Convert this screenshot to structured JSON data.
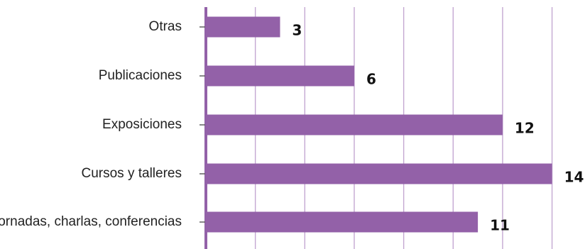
{
  "chart_data": {
    "type": "bar",
    "orientation": "horizontal",
    "categories": [
      "Otras",
      "Publicaciones",
      "Exposiciones",
      "Cursos y talleres",
      "Jornadas, charlas, conferencias"
    ],
    "values": [
      3,
      6,
      12,
      14,
      11
    ],
    "value_labels": [
      "3",
      "6",
      "12",
      "14",
      "11"
    ],
    "title": "",
    "xlabel": "",
    "ylabel": "",
    "xlim": [
      0,
      14.5
    ],
    "grid": "vertical",
    "legend": "none",
    "colors": {
      "bar": "#9361a8",
      "axis": "#9361a8",
      "grid": "#c4a8d2"
    }
  }
}
